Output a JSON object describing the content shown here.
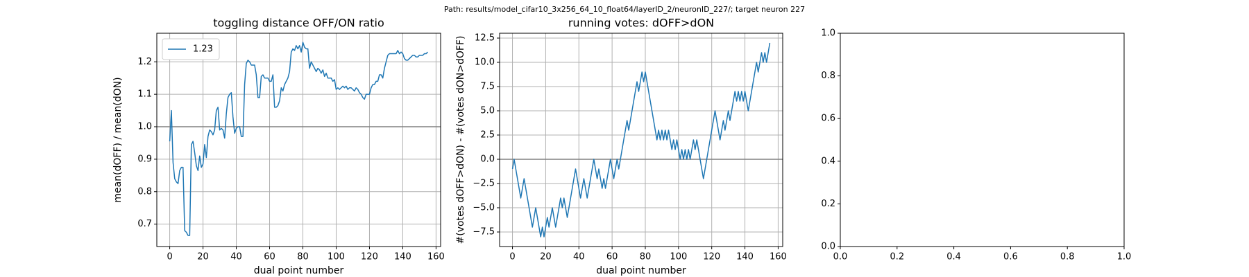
{
  "suptitle": "Path: results/model_cifar10_3x256_64_10_float64/layerID_2/neuronID_227/; target neuron 227",
  "chart_data": [
    {
      "type": "line",
      "title": "toggling distance OFF/ON ratio",
      "xlabel": "dual point number",
      "ylabel": "mean(dOFF) / mean(dON)",
      "x": [
        0,
        1,
        2,
        3,
        4,
        5,
        6,
        7,
        8,
        9,
        10,
        11,
        12,
        13,
        14,
        15,
        16,
        17,
        18,
        19,
        20,
        21,
        22,
        23,
        24,
        25,
        26,
        27,
        28,
        29,
        30,
        31,
        32,
        33,
        34,
        35,
        36,
        37,
        38,
        39,
        40,
        41,
        42,
        43,
        44,
        45,
        46,
        47,
        48,
        49,
        50,
        51,
        52,
        53,
        54,
        55,
        56,
        57,
        58,
        59,
        60,
        61,
        62,
        63,
        64,
        65,
        66,
        67,
        68,
        69,
        70,
        71,
        72,
        73,
        74,
        75,
        76,
        77,
        78,
        79,
        80,
        81,
        82,
        83,
        84,
        85,
        86,
        87,
        88,
        89,
        90,
        91,
        92,
        93,
        94,
        95,
        96,
        97,
        98,
        99,
        100,
        101,
        102,
        103,
        104,
        105,
        106,
        107,
        108,
        109,
        110,
        111,
        112,
        113,
        114,
        115,
        116,
        117,
        118,
        119,
        120,
        121,
        122,
        123,
        124,
        125,
        126,
        127,
        128,
        129,
        130,
        131,
        132,
        133,
        134,
        135,
        136,
        137,
        138,
        139,
        140,
        141,
        142,
        143,
        144,
        145,
        146,
        147,
        148,
        149,
        150,
        151,
        152,
        153,
        154,
        155
      ],
      "series": [
        {
          "name": "1.23",
          "color": "#1f77b4",
          "values": [
            0.955,
            1.05,
            0.89,
            0.84,
            0.83,
            0.825,
            0.865,
            0.875,
            0.875,
            0.68,
            0.675,
            0.665,
            0.665,
            0.945,
            0.955,
            0.92,
            0.88,
            0.865,
            0.91,
            0.875,
            0.885,
            0.945,
            0.905,
            0.97,
            0.99,
            0.985,
            0.975,
            0.99,
            1.05,
            1.06,
            0.99,
            0.995,
            0.99,
            0.965,
            1.04,
            1.09,
            1.1,
            1.105,
            1.03,
            0.98,
            0.995,
            1.0,
            1.0,
            0.97,
            0.97,
            1.13,
            1.195,
            1.205,
            1.2,
            1.19,
            1.19,
            1.19,
            1.16,
            1.09,
            1.09,
            1.155,
            1.16,
            1.15,
            1.15,
            1.15,
            1.14,
            1.14,
            1.16,
            1.06,
            1.06,
            1.065,
            1.08,
            1.12,
            1.11,
            1.13,
            1.14,
            1.15,
            1.17,
            1.23,
            1.24,
            1.235,
            1.25,
            1.24,
            1.25,
            1.23,
            1.26,
            1.245,
            1.24,
            1.24,
            1.18,
            1.2,
            1.19,
            1.18,
            1.17,
            1.18,
            1.175,
            1.165,
            1.175,
            1.155,
            1.165,
            1.15,
            1.15,
            1.15,
            1.14,
            1.145,
            1.115,
            1.12,
            1.115,
            1.12,
            1.125,
            1.12,
            1.125,
            1.115,
            1.12,
            1.12,
            1.115,
            1.11,
            1.12,
            1.115,
            1.105,
            1.1,
            1.09,
            1.085,
            1.1,
            1.1,
            1.1,
            1.12,
            1.13,
            1.13,
            1.14,
            1.14,
            1.16,
            1.16,
            1.15,
            1.18,
            1.2,
            1.22,
            1.225,
            1.225,
            1.225,
            1.225,
            1.225,
            1.235,
            1.225,
            1.23,
            1.225,
            1.21,
            1.205,
            1.205,
            1.21,
            1.215,
            1.22,
            1.22,
            1.215,
            1.215,
            1.22,
            1.22,
            1.22,
            1.225,
            1.225,
            1.23
          ]
        }
      ],
      "hline": 1.0,
      "legend": "upper left",
      "grid": true,
      "xlim": [
        -7.75,
        162.75
      ],
      "xticks": [
        0,
        20,
        40,
        60,
        80,
        100,
        120,
        140,
        160
      ],
      "ylim": [
        0.631,
        1.288
      ],
      "yticks": [
        0.7,
        0.8,
        0.9,
        {
          "value": 1,
          "label": "1.0"
        },
        1.1,
        1.2
      ]
    },
    {
      "type": "line",
      "title": "running votes: dOFF>dON",
      "xlabel": "dual point number",
      "ylabel": "#(votes dOFF>dON) - #(votes dON>dOFF)",
      "x": [
        0,
        1,
        2,
        3,
        4,
        5,
        6,
        7,
        8,
        9,
        10,
        11,
        12,
        13,
        14,
        15,
        16,
        17,
        18,
        19,
        20,
        21,
        22,
        23,
        24,
        25,
        26,
        27,
        28,
        29,
        30,
        31,
        32,
        33,
        34,
        35,
        36,
        37,
        38,
        39,
        40,
        41,
        42,
        43,
        44,
        45,
        46,
        47,
        48,
        49,
        50,
        51,
        52,
        53,
        54,
        55,
        56,
        57,
        58,
        59,
        60,
        61,
        62,
        63,
        64,
        65,
        66,
        67,
        68,
        69,
        70,
        71,
        72,
        73,
        74,
        75,
        76,
        77,
        78,
        79,
        80,
        81,
        82,
        83,
        84,
        85,
        86,
        87,
        88,
        89,
        90,
        91,
        92,
        93,
        94,
        95,
        96,
        97,
        98,
        99,
        100,
        101,
        102,
        103,
        104,
        105,
        106,
        107,
        108,
        109,
        110,
        111,
        112,
        113,
        114,
        115,
        116,
        117,
        118,
        119,
        120,
        121,
        122,
        123,
        124,
        125,
        126,
        127,
        128,
        129,
        130,
        131,
        132,
        133,
        134,
        135,
        136,
        137,
        138,
        139,
        140,
        141,
        142,
        143,
        144,
        145,
        146,
        147,
        148,
        149,
        150,
        151,
        152,
        153,
        154,
        155
      ],
      "series": [
        {
          "color": "#1f77b4",
          "values": [
            -1,
            0,
            -1,
            -2,
            -3,
            -4,
            -3,
            -2,
            -3,
            -4,
            -5,
            -6,
            -7,
            -6,
            -5,
            -6,
            -7,
            -8,
            -7,
            -8,
            -7,
            -6,
            -7,
            -6,
            -5,
            -6,
            -7,
            -6,
            -5,
            -4,
            -5,
            -4,
            -5,
            -6,
            -5,
            -4,
            -3,
            -2,
            -1,
            -2,
            -3,
            -4,
            -3,
            -2,
            -3,
            -4,
            -3,
            -2,
            -1,
            0,
            -1,
            -2,
            -1,
            -2,
            -3,
            -2,
            -3,
            -2,
            -1,
            0,
            -1,
            -2,
            -1,
            0,
            -1,
            0,
            1,
            2,
            3,
            4,
            3,
            4,
            5,
            6,
            7,
            8,
            7,
            8,
            9,
            8,
            9,
            8,
            7,
            6,
            5,
            4,
            3,
            2,
            3,
            2,
            3,
            2,
            3,
            2,
            3,
            2,
            1,
            2,
            1,
            2,
            1,
            0,
            1,
            0,
            1,
            0,
            1,
            0,
            1,
            2,
            1,
            2,
            1,
            0,
            -1,
            -2,
            -1,
            0,
            1,
            2,
            3,
            4,
            5,
            4,
            3,
            2,
            3,
            4,
            3,
            4,
            5,
            4,
            5,
            6,
            7,
            6,
            7,
            6,
            7,
            6,
            7,
            6,
            5,
            6,
            7,
            8,
            9,
            10,
            9,
            10,
            11,
            10,
            11,
            10,
            11,
            12
          ]
        }
      ],
      "hline": 0,
      "grid": true,
      "xlim": [
        -7.75,
        162.75
      ],
      "xticks": [
        0,
        20,
        40,
        60,
        80,
        100,
        120,
        140,
        160
      ],
      "ylim": [
        -9,
        13
      ],
      "yticks": [
        {
          "value": -7.5,
          "label": "−7.5"
        },
        {
          "value": -5,
          "label": "−5.0"
        },
        {
          "value": -2.5,
          "label": "−2.5"
        },
        {
          "value": 0,
          "label": "0.0"
        },
        2.5,
        {
          "value": 5,
          "label": "5.0"
        },
        7.5,
        {
          "value": 10,
          "label": "10.0"
        },
        12.5
      ]
    },
    {
      "type": "line",
      "grid": false,
      "xlim": [
        0,
        1
      ],
      "xticks": [
        {
          "value": 0,
          "label": "0.0"
        },
        0.2,
        0.4,
        0.6,
        0.8,
        {
          "value": 1,
          "label": "1.0"
        }
      ],
      "ylim": [
        0,
        1
      ],
      "yticks": [
        {
          "value": 0,
          "label": "0.0"
        },
        0.2,
        0.4,
        0.6,
        0.8,
        {
          "value": 1,
          "label": "1.0"
        }
      ]
    }
  ]
}
